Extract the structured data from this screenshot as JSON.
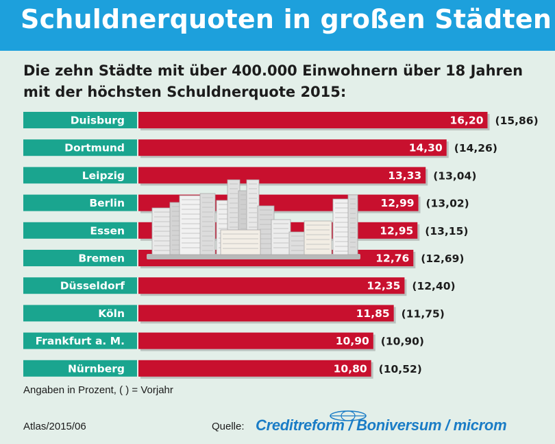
{
  "header": {
    "title": "Schuldnerquoten in großen Städten",
    "subtitle": "Die zehn Städte mit über 400.000 Einwohnern über 18 Jahren mit der höchsten Schuldnerquote 2015:"
  },
  "colors": {
    "header_bg": "#1da0dc",
    "page_bg": "#e3efe9",
    "label_bg": "#1aa58f",
    "bar": "#c8102e",
    "brand_text": "#1a7cc6"
  },
  "chart_data": {
    "type": "bar",
    "orientation": "horizontal",
    "categories": [
      "Duisburg",
      "Dortmund",
      "Leipzig",
      "Berlin",
      "Essen",
      "Bremen",
      "Düsseldorf",
      "Köln",
      "Frankfurt a. M.",
      "Nürnberg"
    ],
    "series": [
      {
        "name": "2015",
        "values": [
          16.2,
          14.3,
          13.33,
          12.99,
          12.95,
          12.76,
          12.35,
          11.85,
          10.9,
          10.8
        ]
      },
      {
        "name": "Vorjahr",
        "values": [
          15.86,
          14.26,
          13.04,
          13.02,
          13.15,
          12.69,
          12.4,
          11.75,
          10.9,
          10.52
        ]
      }
    ],
    "value_labels": [
      "16,20",
      "14,30",
      "13,33",
      "12,99",
      "12,95",
      "12,76",
      "12,35",
      "11,85",
      "10,90",
      "10,80"
    ],
    "prev_labels": [
      "(15,86)",
      "(14,26)",
      "(13,04)",
      "(13,02)",
      "(13,15)",
      "(12,69)",
      "(12,40)",
      "(11,75)",
      "(10,90)",
      "(10,52)"
    ],
    "unit": "Prozent"
  },
  "note": "Angaben in Prozent, ( ) = Vorjahr",
  "footer": {
    "edition": "Atlas/2015/06",
    "source_label": "Quelle:",
    "source_names": "Creditreform / Boniversum / microm"
  }
}
